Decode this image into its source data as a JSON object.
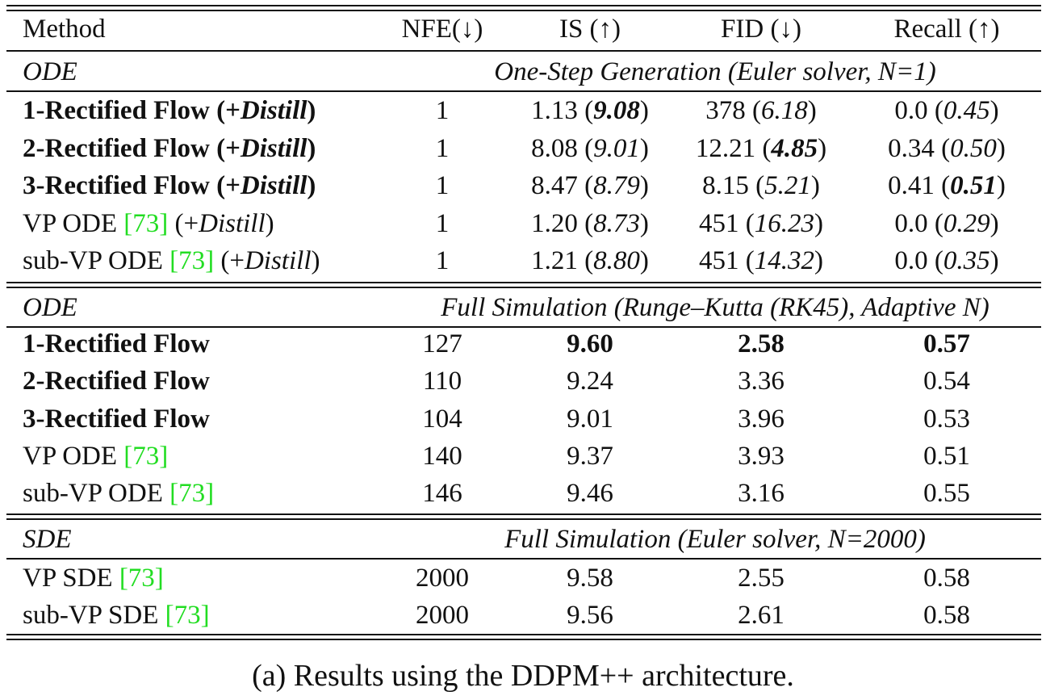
{
  "header": {
    "method": "Method",
    "nfe": "NFE(↓)",
    "is": "IS (↑)",
    "fid": "FID (↓)",
    "recall": "Recall (↑)"
  },
  "sections": [
    {
      "type": "ODE",
      "setting": "One-Step Generation (Euler solver, N=1)",
      "rows": [
        {
          "name": "1-Rectified Flow (+",
          "name_italic": "Distill",
          "name_tail": ")",
          "cite": "",
          "bold": true,
          "nfe": "1",
          "is": "1.13",
          "is_d": "9.08",
          "fid": "378",
          "fid_d": "6.18",
          "recall": "0.0",
          "recall_d": "0.45"
        },
        {
          "name": "2-Rectified Flow (+",
          "name_italic": "Distill",
          "name_tail": ")",
          "cite": "",
          "bold": true,
          "nfe": "1",
          "is": "8.08",
          "is_d": "9.01",
          "fid": "12.21",
          "fid_d": "4.85",
          "recall": "0.34",
          "recall_d": "0.50"
        },
        {
          "name": "3-Rectified Flow (+",
          "name_italic": "Distill",
          "name_tail": ")",
          "cite": "",
          "bold": true,
          "nfe": "1",
          "is": "8.47",
          "is_d": "8.79",
          "fid": "8.15",
          "fid_d": "5.21",
          "recall": "0.41",
          "recall_d": "0.51"
        },
        {
          "name": "VP ODE ",
          "cite": "[73]",
          "name_post": " (+",
          "name_italic": "Distill",
          "name_tail": ")",
          "bold": false,
          "nfe": "1",
          "is": "1.20",
          "is_d": "8.73",
          "fid": "451",
          "fid_d": "16.23",
          "recall": "0.0",
          "recall_d": "0.29"
        },
        {
          "name": "sub-VP ODE ",
          "cite": "[73]",
          "name_post": " (+",
          "name_italic": "Distill",
          "name_tail": ")",
          "bold": false,
          "nfe": "1",
          "is": "1.21",
          "is_d": "8.80",
          "fid": "451",
          "fid_d": "14.32",
          "recall": "0.0",
          "recall_d": "0.35"
        }
      ]
    },
    {
      "type": "ODE",
      "setting": "Full Simulation (Runge–Kutta (RK45), Adaptive N)",
      "rows": [
        {
          "name": "1-Rectified Flow",
          "nfe": "127",
          "is": "9.60",
          "fid": "2.58",
          "recall": "0.57"
        },
        {
          "name": "2-Rectified Flow",
          "nfe": "110",
          "is": "9.24",
          "fid": "3.36",
          "recall": "0.54"
        },
        {
          "name": "3-Rectified Flow",
          "nfe": "104",
          "is": "9.01",
          "fid": "3.96",
          "recall": "0.53"
        },
        {
          "name": "VP ODE ",
          "cite": "[73]",
          "nfe": "140",
          "is": "9.37",
          "fid": "3.93",
          "recall": "0.51"
        },
        {
          "name": "sub-VP ODE ",
          "cite": "[73]",
          "nfe": "146",
          "is": "9.46",
          "fid": "3.16",
          "recall": "0.55"
        }
      ]
    },
    {
      "type": "SDE",
      "setting": "Full Simulation (Euler solver, N=2000)",
      "rows": [
        {
          "name": "VP SDE ",
          "cite": "[73]",
          "nfe": "2000",
          "is": "9.58",
          "fid": "2.55",
          "recall": "0.58"
        },
        {
          "name": "sub-VP SDE ",
          "cite": "[73]",
          "nfe": "2000",
          "is": "9.56",
          "fid": "2.61",
          "recall": "0.58"
        }
      ]
    }
  ],
  "caption": "(a) Results using the DDPM++ architecture.",
  "colors": {
    "citation": "#22dd22",
    "text": "#111111"
  }
}
